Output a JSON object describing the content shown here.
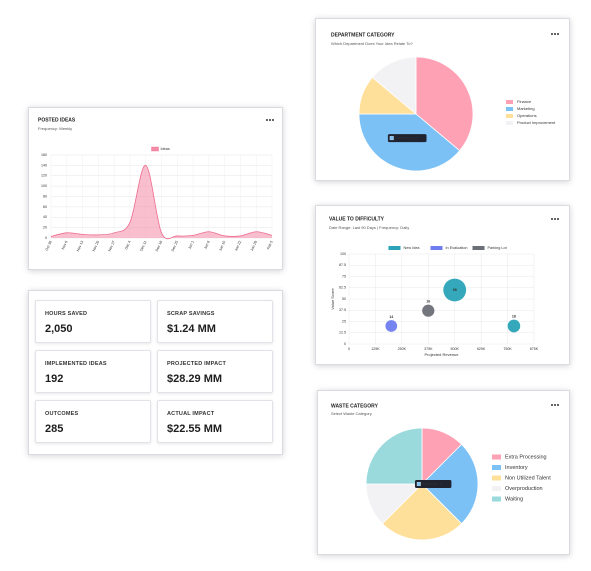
{
  "chart_data": [
    {
      "type": "area",
      "title": "POSTED IDEAS",
      "subtitle": "Frequency: Weekly",
      "categories": [
        "Oct 30",
        "Nov 6",
        "Nov 13",
        "Nov 20",
        "Nov 27",
        "Dec 4",
        "Dec 11",
        "Dec 18",
        "Dec 25",
        "Jan 1",
        "Jan 8",
        "Jan 15",
        "Jan 22",
        "Jan 29",
        "Feb 5"
      ],
      "series": [
        {
          "name": "Ideas",
          "color": "#f48aa6",
          "values": [
            3,
            10,
            7,
            6,
            10,
            30,
            140,
            10,
            4,
            5,
            12,
            4,
            4,
            12,
            5
          ]
        }
      ],
      "ylim": [
        0,
        160
      ],
      "yticks": [
        0,
        20,
        40,
        60,
        80,
        100,
        120,
        140,
        160
      ],
      "grid": true,
      "legend": "top"
    },
    {
      "type": "pie",
      "title": "DEPARTMENT CATEGORY",
      "subtitle": "Which Department Does Your Idea Relate To?",
      "categories": [
        "Finance",
        "Marketing",
        "Operations",
        "Product Improvement"
      ],
      "values": [
        13,
        14,
        4,
        5
      ],
      "colors": [
        "#ffa1b5",
        "#7cc1f6",
        "#ffe09a",
        "#f2f2f4"
      ],
      "tooltip": "Marketing: 14",
      "legend": "right"
    },
    {
      "type": "bubble",
      "title": "VALUE TO DIFFICULTY",
      "subtitle": "Date Range: Last 90 Days | Frequency: Daily",
      "x_label": "Projected Revenue",
      "y_label": "Value Score",
      "series": [
        {
          "name": "New Idea",
          "color": "#2aa3b8",
          "x": [
            500000,
            780000
          ],
          "y": [
            60,
            20
          ],
          "size": [
            98,
            18
          ]
        },
        {
          "name": "In Evaluation",
          "color": "#6f7df0",
          "x": [
            200000
          ],
          "y": [
            20
          ],
          "size": [
            14
          ]
        },
        {
          "name": "Parking Lot",
          "color": "#6b6f76",
          "x": [
            375000
          ],
          "y": [
            37
          ],
          "size": [
            16
          ]
        }
      ],
      "xlim": [
        0,
        875000
      ],
      "xticks": [
        0,
        {
          "value": 125000,
          "label": "125K"
        },
        {
          "value": 250000,
          "label": "250K"
        },
        {
          "value": 375000,
          "label": "375K"
        },
        {
          "value": 500000,
          "label": "500K"
        },
        {
          "value": 625000,
          "label": "625K"
        },
        {
          "value": 750000,
          "label": "750K"
        },
        {
          "value": 875000,
          "label": "875K"
        }
      ],
      "ylim": [
        0,
        100
      ],
      "yticks": [
        0,
        12.5,
        25,
        37.5,
        50,
        62.5,
        75,
        87.5,
        100
      ],
      "grid": true,
      "legend": "top"
    },
    {
      "type": "pie",
      "title": "WASTE CATEGORY",
      "subtitle": "Select Waste Category",
      "categories": [
        "Extra Processing",
        "Inventory",
        "Non Utilized Talent",
        "Overproduction",
        "Waiting"
      ],
      "values": [
        1,
        2,
        2,
        1,
        2
      ],
      "colors": [
        "#ffa1b5",
        "#7cc1f6",
        "#ffe09a",
        "#f2f2f4",
        "#9ad9dc"
      ],
      "tooltip": "Inventory: 2",
      "legend": "right"
    }
  ],
  "kpis": [
    {
      "label": "HOURS SAVED",
      "value": "2,050"
    },
    {
      "label": "SCRAP SAVINGS",
      "value": "$1.24 MM"
    },
    {
      "label": "IMPLEMENTED IDEAS",
      "value": "192"
    },
    {
      "label": "PROJECTED IMPACT",
      "value": "$28.29 MM"
    },
    {
      "label": "OUTCOMES",
      "value": "285"
    },
    {
      "label": "ACTUAL IMPACT",
      "value": "$22.55 MM"
    }
  ]
}
